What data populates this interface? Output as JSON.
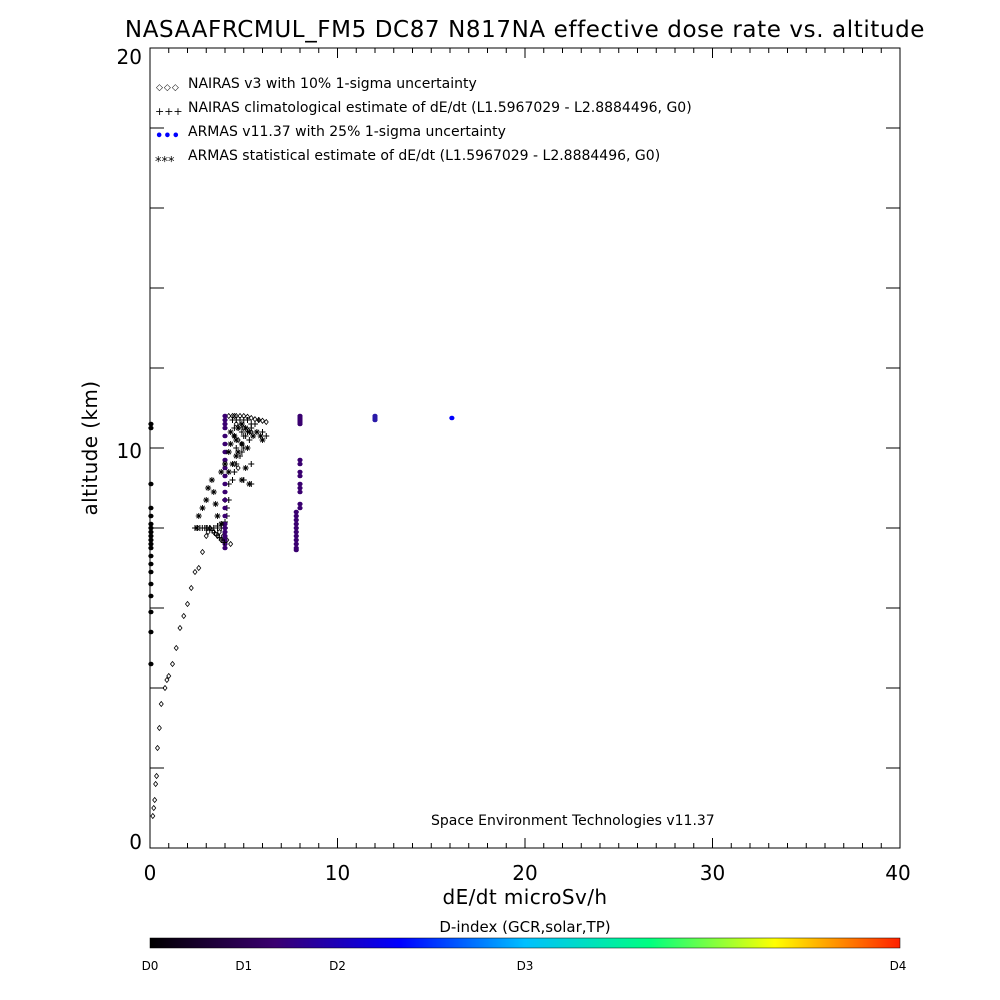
{
  "chart_data": {
    "type": "scatter",
    "title": "NASAAFRCMUL_FM5 DC87 N817NA effective dose rate vs. altitude",
    "xlabel": "dE/dt microSv/h",
    "ylabel": "altitude (km)",
    "xlim": [
      0,
      40
    ],
    "ylim": [
      0,
      20
    ],
    "x_ticks": [
      "0",
      "10",
      "20",
      "30",
      "40"
    ],
    "y_ticks": [
      "0",
      "10",
      "20"
    ],
    "grid": false,
    "legend_position": "top-left",
    "legend": [
      {
        "marker": "◇◇◇",
        "label": "NAIRAS v3 with 10% 1-sigma uncertainty"
      },
      {
        "marker": "+++",
        "label": "NAIRAS climatological estimate of dE/dt (L1.5967029 - L2.8884496, G0)"
      },
      {
        "marker": "•••",
        "label": "ARMAS v11.37 with 25% 1-sigma uncertainty"
      },
      {
        "marker": "***",
        "label": "ARMAS statistical estimate of dE/dt (L1.5967029 - L2.8884496, G0)"
      }
    ],
    "annotation": "Space Environment Technologies v11.37",
    "colorbar": {
      "title": "D-index (GCR,solar,TP)",
      "labels": [
        {
          "text": "D0",
          "value": 0
        },
        {
          "text": "D1",
          "value": 0.125
        },
        {
          "text": "D2",
          "value": 0.25
        },
        {
          "text": "D3",
          "value": 0.5
        },
        {
          "text": "D4",
          "value": 1.0
        }
      ],
      "colors": [
        "#000000",
        "#3a0070",
        "#0000ff",
        "#00c0ff",
        "#00ff80",
        "#ffff00",
        "#ff2000"
      ]
    },
    "series": [
      {
        "name": "NAIRAS v3",
        "marker": "diamond",
        "color": "#000000",
        "x": [
          0.15,
          0.2,
          0.25,
          0.3,
          0.35,
          0.4,
          0.5,
          0.6,
          0.8,
          0.9,
          1.0,
          1.2,
          1.4,
          1.6,
          1.8,
          2.0,
          2.2,
          2.4,
          2.6,
          2.8,
          3.0,
          3.1,
          3.2,
          3.4,
          3.6,
          3.8,
          4.0,
          4.2,
          4.4,
          4.5,
          4.6,
          4.8,
          5.0,
          5.2,
          5.4,
          5.6,
          5.8,
          6.0,
          6.2,
          4.6,
          4.8,
          5.0,
          5.2,
          5.4,
          4.5,
          4.7,
          4.9,
          4.5,
          4.7,
          3.7,
          3.9,
          4.1,
          4.3
        ],
        "y": [
          0.8,
          1.0,
          1.2,
          1.6,
          1.8,
          2.5,
          3.0,
          3.6,
          4.0,
          4.2,
          4.3,
          4.6,
          5.0,
          5.5,
          5.8,
          6.1,
          6.5,
          6.9,
          7.0,
          7.4,
          7.8,
          7.9,
          8.0,
          7.9,
          7.8,
          7.7,
          7.6,
          10.8,
          10.8,
          10.8,
          10.8,
          10.8,
          10.8,
          10.78,
          10.75,
          10.72,
          10.7,
          10.68,
          10.65,
          10.6,
          10.55,
          10.5,
          10.45,
          10.4,
          10.3,
          10.2,
          10.1,
          9.6,
          9.5,
          7.9,
          7.8,
          7.7,
          7.6
        ]
      },
      {
        "name": "NAIRAS climatological estimate",
        "marker": "plus",
        "color": "#000000",
        "x": [
          3.0,
          3.2,
          3.4,
          3.6,
          3.8,
          4.0,
          3.6,
          3.8,
          4.0,
          4.0,
          4.2,
          4.2,
          4.4,
          4.5,
          4.6,
          4.8,
          5.0,
          5.0,
          5.2,
          5.4,
          5.6,
          5.8,
          6.0,
          6.2,
          4.4,
          4.6,
          4.8,
          5.0,
          5.2,
          5.4,
          4.5,
          4.7,
          4.9,
          5.1,
          5.3,
          4.6,
          4.9,
          5.4,
          5.4,
          5.0,
          4.1,
          4.1
        ],
        "y": [
          8.0,
          8.0,
          8.0,
          8.0,
          8.0,
          8.0,
          8.05,
          8.1,
          8.15,
          8.7,
          8.7,
          9.1,
          9.2,
          9.4,
          9.6,
          9.8,
          10.0,
          10.3,
          10.4,
          10.5,
          10.6,
          10.7,
          10.4,
          10.3,
          10.7,
          10.7,
          10.7,
          10.7,
          10.7,
          10.6,
          10.5,
          10.5,
          10.4,
          10.3,
          10.2,
          10.0,
          9.9,
          9.6,
          9.1,
          9.2,
          8.3,
          8.5
        ]
      },
      {
        "name": "ARMAS v11.37",
        "marker": "dot",
        "color": "#3a0070",
        "x": [
          0.05,
          0.05,
          0.05,
          0.05,
          0.05,
          0.05,
          0.05,
          0.05,
          0.05,
          0.05,
          0.05,
          0.05,
          0.05,
          0.05,
          0.05,
          0.05,
          0.05,
          0.05,
          0.05,
          0.05,
          4.0,
          4.0,
          4.0,
          4.0,
          4.0,
          4.0,
          4.0,
          4.0,
          4.0,
          4.0,
          4.0,
          4.0,
          4.0,
          4.0,
          4.0,
          4.0,
          4.0,
          4.0,
          4.0,
          4.0,
          4.0,
          4.0,
          7.8,
          7.8,
          7.8,
          7.8,
          7.8,
          7.8,
          7.8,
          7.8,
          7.8,
          7.8,
          7.8,
          8.0,
          8.0,
          8.0,
          8.0,
          8.0,
          8.0,
          8.0,
          8.0,
          8.0,
          8.0,
          8.0,
          8.0,
          8.0,
          8.0,
          12.0,
          12.0,
          12.0,
          16.1
        ],
        "y": [
          10.6,
          10.5,
          9.1,
          8.5,
          8.3,
          8.1,
          8.0,
          7.9,
          7.8,
          7.7,
          7.6,
          7.5,
          7.3,
          7.1,
          6.9,
          6.6,
          6.3,
          5.9,
          5.4,
          4.6,
          10.8,
          10.7,
          10.6,
          10.5,
          10.3,
          10.1,
          9.9,
          9.7,
          9.5,
          9.3,
          9.1,
          8.9,
          8.7,
          8.5,
          8.3,
          8.1,
          8.0,
          7.9,
          7.8,
          7.7,
          7.6,
          7.5,
          8.0,
          7.9,
          7.8,
          7.7,
          7.6,
          7.5,
          8.2,
          8.3,
          8.4,
          8.1,
          7.45,
          10.8,
          10.75,
          10.7,
          10.65,
          10.6,
          9.7,
          9.6,
          9.4,
          9.3,
          9.1,
          9.0,
          8.9,
          8.6,
          8.5,
          10.8,
          10.75,
          10.7,
          10.75
        ]
      },
      {
        "name": "ARMAS statistical estimate",
        "marker": "asterisk",
        "color": "#000000",
        "x": [
          2.5,
          2.6,
          2.8,
          3.0,
          3.1,
          3.3,
          3.4,
          3.5,
          3.6,
          3.8,
          3.8,
          4.0,
          4.2,
          4.3,
          4.5,
          4.7,
          4.9,
          5.1,
          5.3,
          5.5,
          5.7,
          5.9,
          6.0,
          4.3,
          4.6,
          4.9,
          5.2,
          4.6,
          4.4,
          4.2,
          5.1,
          5.3,
          4.9,
          4.7
        ],
        "y": [
          8.0,
          8.3,
          8.5,
          8.7,
          9.0,
          9.2,
          8.9,
          8.6,
          8.3,
          8.1,
          9.4,
          9.6,
          9.9,
          10.1,
          10.3,
          10.5,
          10.6,
          10.5,
          10.4,
          10.3,
          10.4,
          10.3,
          10.2,
          10.4,
          10.2,
          10.1,
          10.0,
          9.8,
          9.6,
          9.4,
          9.5,
          9.1,
          9.2,
          9.9
        ]
      }
    ]
  }
}
